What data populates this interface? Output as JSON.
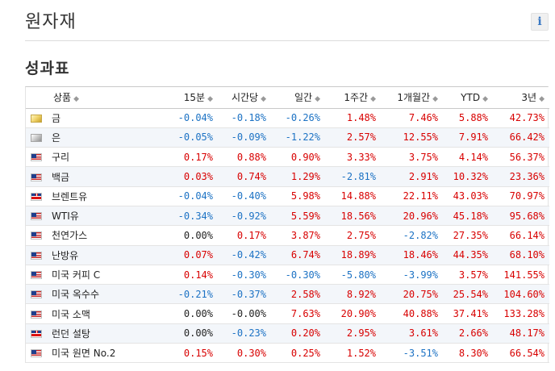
{
  "header": {
    "title": "원자재",
    "info_label": "i"
  },
  "section": {
    "title": "성과표"
  },
  "table": {
    "columns": [
      {
        "label": "상품",
        "sort_icon": "sort-icon"
      },
      {
        "label": "15분",
        "sort_icon": "sort-icon"
      },
      {
        "label": "시간당",
        "sort_icon": "sort-icon"
      },
      {
        "label": "일간",
        "sort_icon": "sort-icon"
      },
      {
        "label": "1주간",
        "sort_icon": "sort-icon"
      },
      {
        "label": "1개월간",
        "sort_icon": "sort-icon"
      },
      {
        "label": "YTD",
        "sort_icon": "sort-icon"
      },
      {
        "label": "3년",
        "sort_icon": "sort-icon"
      }
    ],
    "sort_glyph": "◆",
    "rows": [
      {
        "flag": "gold-icon",
        "name": "금",
        "values": [
          "-0.04%",
          "-0.18%",
          "-0.26%",
          "1.48%",
          "7.46%",
          "5.88%",
          "42.73%"
        ]
      },
      {
        "flag": "silver-icon",
        "name": "은",
        "values": [
          "-0.05%",
          "-0.09%",
          "-1.22%",
          "2.57%",
          "12.55%",
          "7.91%",
          "66.42%"
        ]
      },
      {
        "flag": "us-flag-icon",
        "name": "구리",
        "values": [
          "0.17%",
          "0.88%",
          "0.90%",
          "3.33%",
          "3.75%",
          "4.14%",
          "56.37%"
        ]
      },
      {
        "flag": "us-flag-icon",
        "name": "백금",
        "values": [
          "0.03%",
          "0.74%",
          "1.29%",
          "-2.81%",
          "2.91%",
          "10.32%",
          "23.36%"
        ]
      },
      {
        "flag": "uk-flag-icon",
        "name": "브렌트유",
        "values": [
          "-0.04%",
          "-0.40%",
          "5.98%",
          "14.88%",
          "22.11%",
          "43.03%",
          "70.97%"
        ]
      },
      {
        "flag": "us-flag-icon",
        "name": "WTI유",
        "values": [
          "-0.34%",
          "-0.92%",
          "5.59%",
          "18.56%",
          "20.96%",
          "45.18%",
          "95.68%"
        ]
      },
      {
        "flag": "us-flag-icon",
        "name": "천연가스",
        "values": [
          "0.00%",
          "0.17%",
          "3.87%",
          "2.75%",
          "-2.82%",
          "27.35%",
          "66.14%"
        ]
      },
      {
        "flag": "us-flag-icon",
        "name": "난방유",
        "values": [
          "0.07%",
          "-0.42%",
          "6.74%",
          "18.89%",
          "18.46%",
          "44.35%",
          "68.10%"
        ]
      },
      {
        "flag": "us-flag-icon",
        "name": "미국 커피 C",
        "values": [
          "0.14%",
          "-0.30%",
          "-0.30%",
          "-5.80%",
          "-3.99%",
          "3.57%",
          "141.55%"
        ]
      },
      {
        "flag": "us-flag-icon",
        "name": "미국 옥수수",
        "values": [
          "-0.21%",
          "-0.37%",
          "2.58%",
          "8.92%",
          "20.75%",
          "25.54%",
          "104.60%"
        ]
      },
      {
        "flag": "us-flag-icon",
        "name": "미국 소맥",
        "values": [
          "0.00%",
          "-0.00%",
          "7.63%",
          "20.90%",
          "40.88%",
          "37.41%",
          "133.28%"
        ]
      },
      {
        "flag": "uk-flag-icon",
        "name": "런던 설탕",
        "values": [
          "0.00%",
          "-0.23%",
          "0.20%",
          "2.95%",
          "3.61%",
          "2.66%",
          "48.17%"
        ]
      },
      {
        "flag": "us-flag-icon",
        "name": "미국 원면 No.2",
        "values": [
          "0.15%",
          "0.30%",
          "0.25%",
          "1.52%",
          "-3.51%",
          "8.30%",
          "66.54%"
        ]
      }
    ]
  },
  "colors": {
    "positive": "#d80000",
    "negative": "#1c72c4",
    "neutral": "#222222",
    "row_alt": "#f3f6fa"
  }
}
